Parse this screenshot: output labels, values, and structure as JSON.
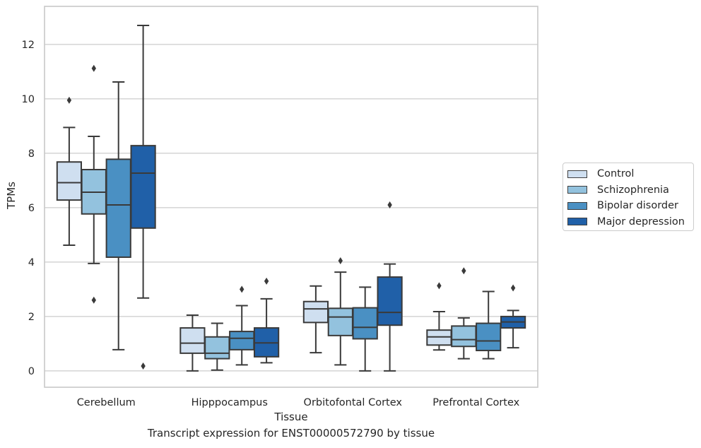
{
  "caption": "Transcript expression for ENST00000572790 by tissue",
  "colors": {
    "Control": "#cfdff0",
    "Schizophrenia": "#93c2de",
    "Bipolar disorder": "#4a90c3",
    "Major depression": "#2060a8",
    "line": "#3a3a3a",
    "grid": "#cccccc",
    "frame": "#c8c8c8"
  },
  "chart_data": {
    "type": "box",
    "xlabel": "Tissue",
    "ylabel": "TPMs",
    "ylim": [
      -0.6,
      13.4
    ],
    "yticks": [
      0,
      2,
      4,
      6,
      8,
      10,
      12
    ],
    "grid": "horizontal",
    "legend_position": "right-outside",
    "categories": [
      "Cerebellum",
      "Hipppocampus",
      "Orbitofontal Cortex",
      "Prefrontal Cortex"
    ],
    "series": [
      {
        "name": "Control",
        "boxes": [
          {
            "whislo": 4.62,
            "q1": 6.28,
            "med": 6.92,
            "q3": 7.68,
            "whishi": 8.95,
            "fliers": [
              9.95
            ]
          },
          {
            "whislo": 0.0,
            "q1": 0.65,
            "med": 1.02,
            "q3": 1.58,
            "whishi": 2.05,
            "fliers": []
          },
          {
            "whislo": 0.67,
            "q1": 1.78,
            "med": 2.28,
            "q3": 2.55,
            "whishi": 3.12,
            "fliers": []
          },
          {
            "whislo": 0.77,
            "q1": 0.95,
            "med": 1.25,
            "q3": 1.5,
            "whishi": 2.18,
            "fliers": [
              3.13
            ]
          }
        ]
      },
      {
        "name": "Schizophrenia",
        "boxes": [
          {
            "whislo": 3.95,
            "q1": 5.77,
            "med": 6.57,
            "q3": 7.4,
            "whishi": 8.62,
            "fliers": [
              2.6,
              11.12
            ]
          },
          {
            "whislo": 0.03,
            "q1": 0.45,
            "med": 0.65,
            "q3": 1.25,
            "whishi": 1.75,
            "fliers": []
          },
          {
            "whislo": 0.22,
            "q1": 1.3,
            "med": 1.98,
            "q3": 2.3,
            "whishi": 3.63,
            "fliers": [
              4.05
            ]
          },
          {
            "whislo": 0.45,
            "q1": 0.9,
            "med": 1.15,
            "q3": 1.65,
            "whishi": 1.95,
            "fliers": [
              3.68
            ]
          }
        ]
      },
      {
        "name": "Bipolar disorder",
        "boxes": [
          {
            "whislo": 0.78,
            "q1": 4.18,
            "med": 6.1,
            "q3": 7.78,
            "whishi": 10.62,
            "fliers": []
          },
          {
            "whislo": 0.22,
            "q1": 0.78,
            "med": 1.2,
            "q3": 1.45,
            "whishi": 2.4,
            "fliers": [
              3.0
            ]
          },
          {
            "whislo": 0.0,
            "q1": 1.18,
            "med": 1.6,
            "q3": 2.32,
            "whishi": 3.08,
            "fliers": []
          },
          {
            "whislo": 0.45,
            "q1": 0.75,
            "med": 1.1,
            "q3": 1.75,
            "whishi": 2.92,
            "fliers": []
          }
        ]
      },
      {
        "name": "Major depression",
        "boxes": [
          {
            "whislo": 2.68,
            "q1": 5.25,
            "med": 7.27,
            "q3": 8.28,
            "whishi": 12.7,
            "fliers": [
              0.18
            ]
          },
          {
            "whislo": 0.3,
            "q1": 0.52,
            "med": 1.03,
            "q3": 1.58,
            "whishi": 2.65,
            "fliers": [
              3.3
            ]
          },
          {
            "whislo": 0.0,
            "q1": 1.68,
            "med": 2.15,
            "q3": 3.45,
            "whishi": 3.93,
            "fliers": [
              6.1
            ]
          },
          {
            "whislo": 0.85,
            "q1": 1.58,
            "med": 1.8,
            "q3": 2.0,
            "whishi": 2.22,
            "fliers": [
              3.05
            ]
          }
        ]
      }
    ]
  }
}
